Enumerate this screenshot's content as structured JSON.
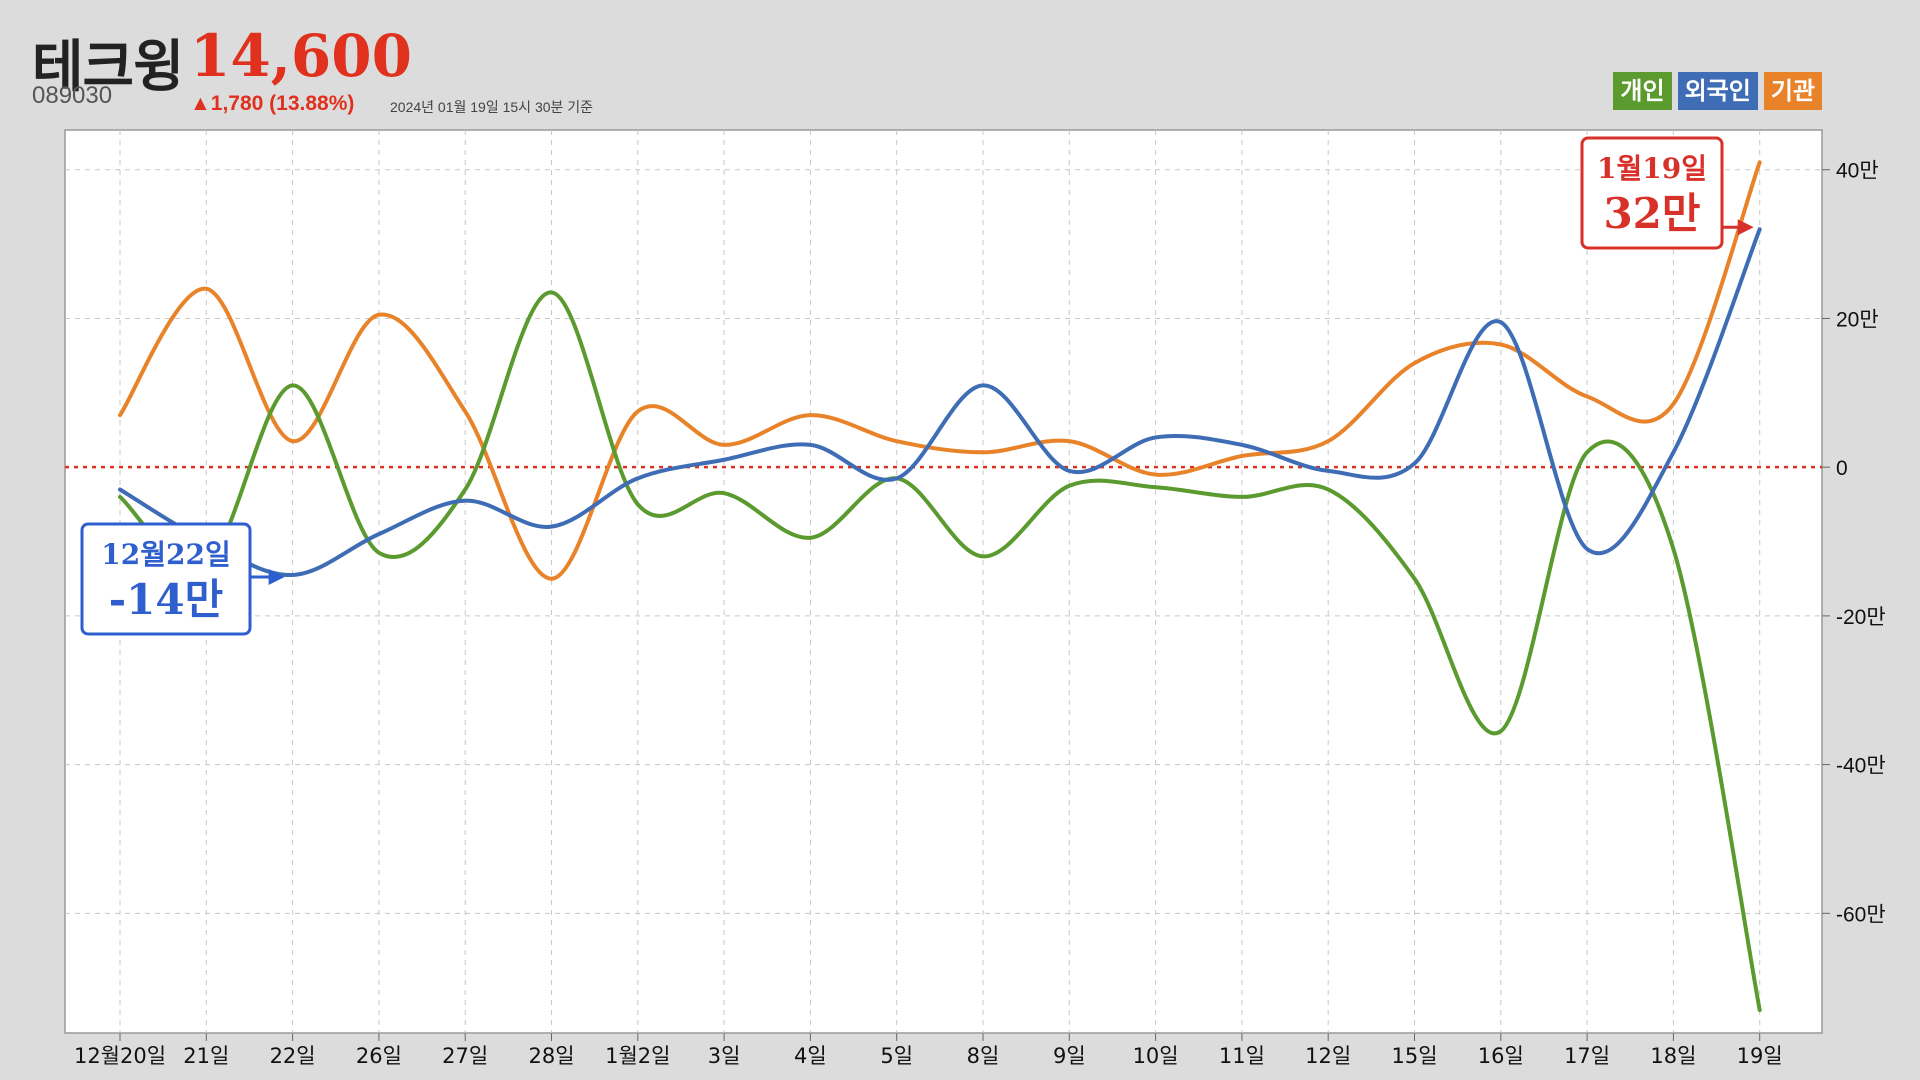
{
  "header": {
    "stock_name": "테크윙",
    "price": "14,600",
    "code": "089030",
    "change": "▲1,780 (13.88%)",
    "as_of": "2024년 01월 19일 15시 30분 기준"
  },
  "colors": {
    "individual": "#5a9a2e",
    "foreign": "#3e6db5",
    "institution": "#e8832a",
    "zero_line": "#e0301e",
    "callout_max": "#d8312a",
    "callout_min": "#2f5fcf"
  },
  "callouts": {
    "max": {
      "date": "1월19일",
      "value": "32만",
      "series": "외국인",
      "category": "19일"
    },
    "min": {
      "date": "12월22일",
      "value": "-14만",
      "series": "외국인",
      "category": "22일"
    }
  },
  "chart_data": {
    "type": "line",
    "title": "",
    "xlabel": "",
    "ylabel": "",
    "categories": [
      "12월20일",
      "21일",
      "22일",
      "26일",
      "27일",
      "28일",
      "1월2일",
      "3일",
      "4일",
      "5일",
      "8일",
      "9일",
      "10일",
      "11일",
      "12일",
      "15일",
      "16일",
      "17일",
      "18일",
      "19일"
    ],
    "y_ticks": [
      {
        "value": 400000,
        "label": "40만"
      },
      {
        "value": 200000,
        "label": "20만"
      },
      {
        "value": 0,
        "label": "0"
      },
      {
        "value": -200000,
        "label": "-20만"
      },
      {
        "value": -400000,
        "label": "-40만"
      },
      {
        "value": -600000,
        "label": "-60만"
      }
    ],
    "ylim": [
      -730000,
      440000
    ],
    "grid": true,
    "legend": "top-right",
    "series": [
      {
        "name": "개인",
        "color_key": "individual",
        "values": [
          -40000,
          -130000,
          110000,
          -115000,
          -30000,
          235000,
          -50000,
          -35000,
          -95000,
          -15000,
          -120000,
          -25000,
          -27000,
          -40000,
          -30000,
          -150000,
          -355000,
          20000,
          -110000,
          -730000
        ]
      },
      {
        "name": "외국인",
        "color_key": "foreign",
        "values": [
          -30000,
          -100000,
          -145000,
          -90000,
          -45000,
          -80000,
          -15000,
          10000,
          30000,
          -15000,
          110000,
          -5000,
          40000,
          30000,
          -5000,
          5000,
          195000,
          -110000,
          20000,
          320000
        ]
      },
      {
        "name": "기관",
        "color_key": "institution",
        "values": [
          70000,
          240000,
          35000,
          205000,
          75000,
          -150000,
          75000,
          30000,
          70000,
          35000,
          20000,
          35000,
          -10000,
          15000,
          35000,
          140000,
          165000,
          95000,
          85000,
          410000
        ]
      }
    ]
  }
}
